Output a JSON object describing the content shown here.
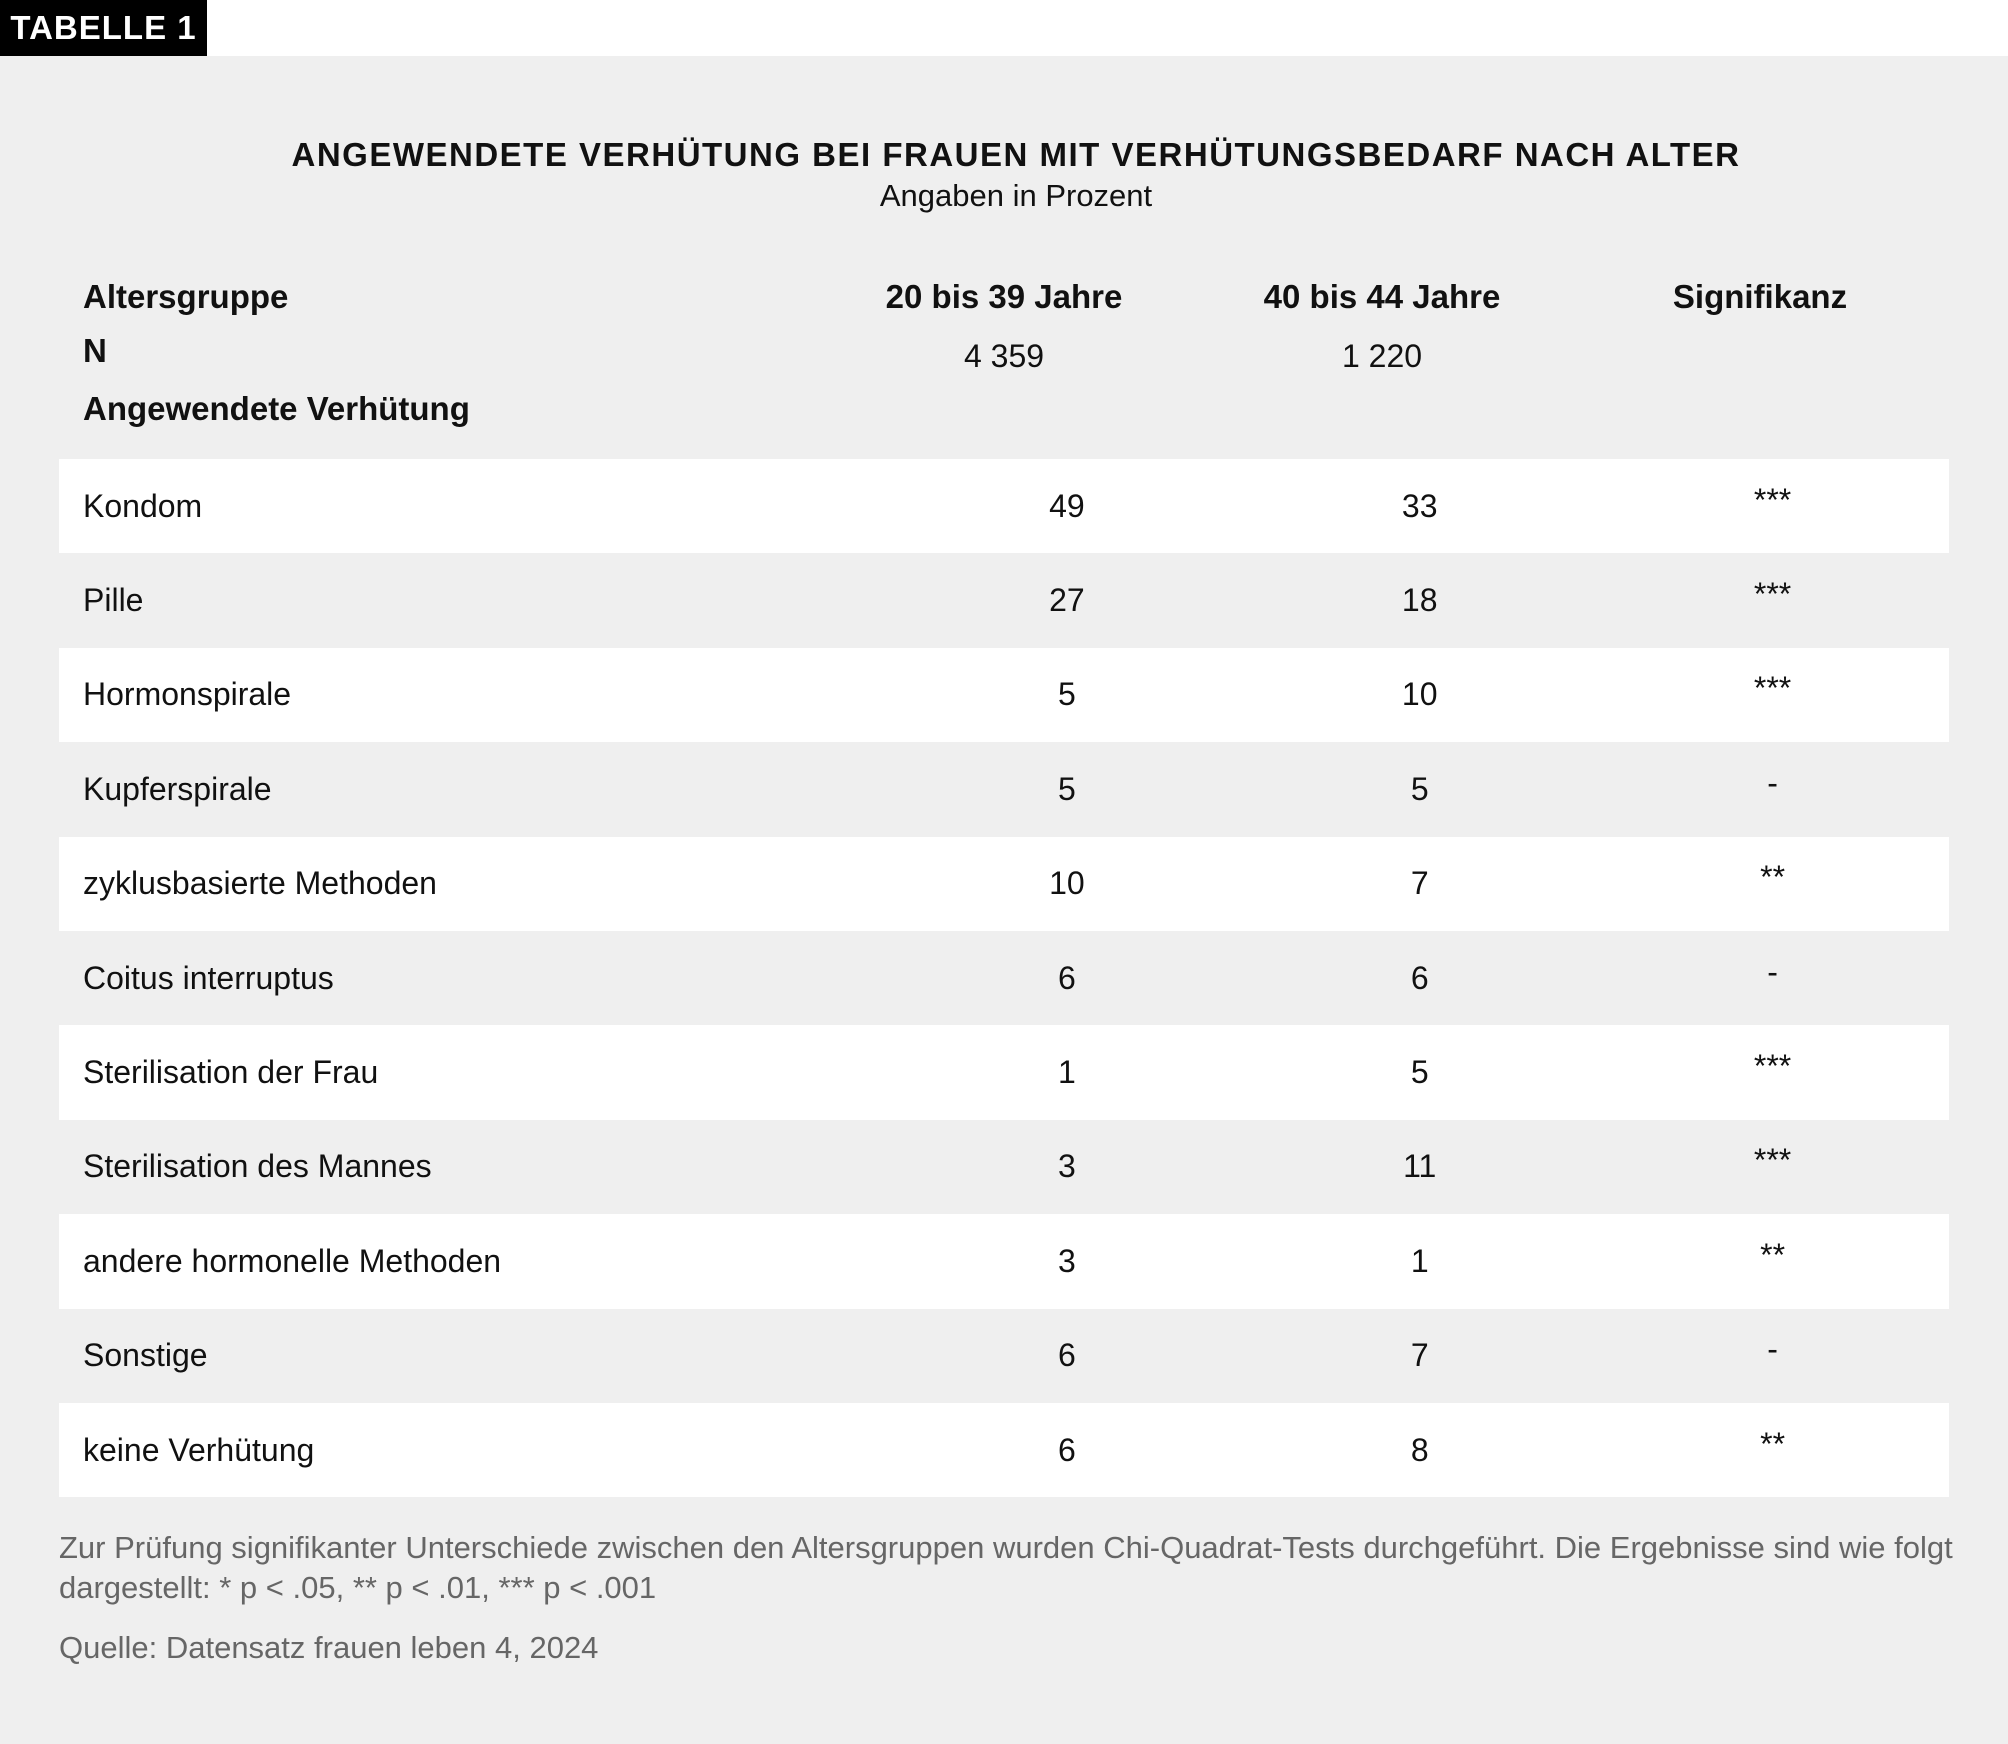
{
  "tab_label": "TABELLE 1",
  "title": "ANGEWENDETE VERHÜTUNG BEI FRAUEN MIT VERHÜTUNGSBEDARF NACH ALTER",
  "subtitle": "Angaben in Prozent",
  "header": {
    "row_label": "Altersgruppe",
    "n_label": "N",
    "section_label": "Angewendete Verhütung",
    "col1": "20 bis 39 Jahre",
    "col2": "40 bis 44 Jahre",
    "col3": "Signifikanz",
    "n_col1": "4 359",
    "n_col2": "1 220"
  },
  "rows": [
    {
      "label": "Kondom",
      "v1": "49",
      "v2": "33",
      "sig": "***"
    },
    {
      "label": "Pille",
      "v1": "27",
      "v2": "18",
      "sig": "***"
    },
    {
      "label": "Hormonspirale",
      "v1": "5",
      "v2": "10",
      "sig": "***"
    },
    {
      "label": "Kupferspirale",
      "v1": "5",
      "v2": "5",
      "sig": "-"
    },
    {
      "label": "zyklusbasierte Methoden",
      "v1": "10",
      "v2": "7",
      "sig": "**"
    },
    {
      "label": "Coitus interruptus",
      "v1": "6",
      "v2": "6",
      "sig": "-"
    },
    {
      "label": "Sterilisation der Frau",
      "v1": "1",
      "v2": "5",
      "sig": "***"
    },
    {
      "label": "Sterilisation des Mannes",
      "v1": "3",
      "v2": "11",
      "sig": "***"
    },
    {
      "label": "andere hormonelle Methoden",
      "v1": "3",
      "v2": "1",
      "sig": "**"
    },
    {
      "label": "Sonstige",
      "v1": "6",
      "v2": "7",
      "sig": "-"
    },
    {
      "label": "keine Verhütung",
      "v1": "6",
      "v2": "8",
      "sig": "**"
    }
  ],
  "footnote": "Zur Prüfung signifikanter Unterschiede zwischen den Altersgruppen wurden Chi-Quadrat-Tests durchgeführt. Die Ergebnisse sind wie folgt dargestellt: * p < .05, ** p < .01, *** p < .001",
  "source": "Quelle: Datensatz frauen leben 4, 2024",
  "colors": {
    "tab_bg": "#000000",
    "panel_bg": "#efefef",
    "row_bg": "#ffffff",
    "muted_text": "#666666"
  }
}
